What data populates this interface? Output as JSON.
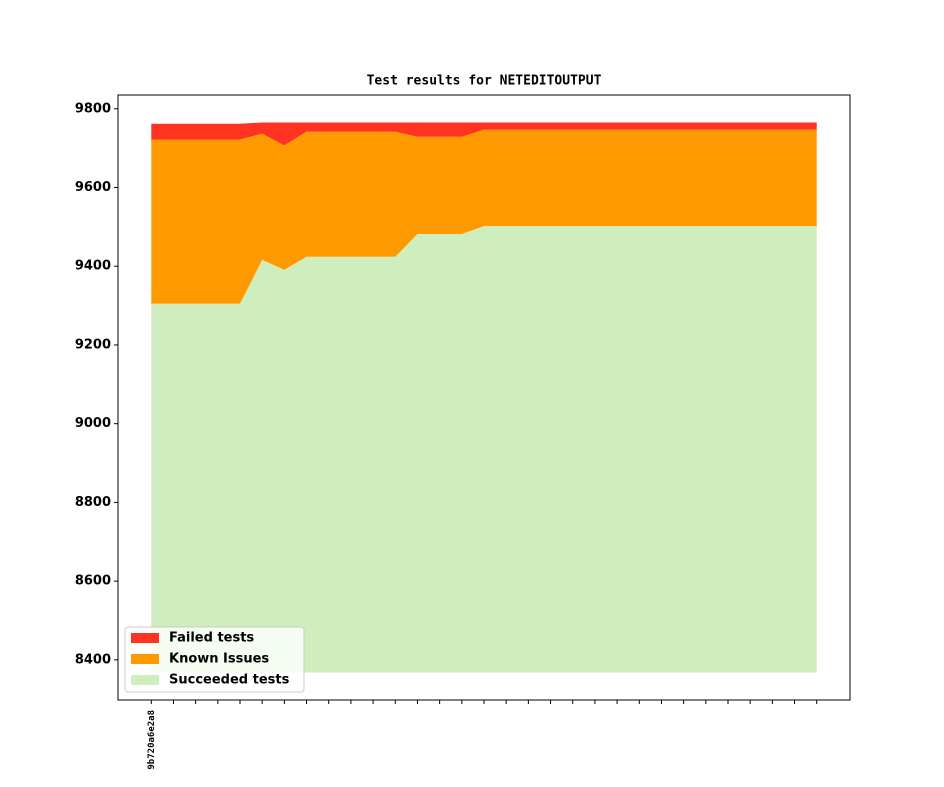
{
  "chart_data": {
    "type": "stacked_area",
    "title": "Test results for NETEDITOUTPUT",
    "categories": [
      "9b720a6e2a8",
      null,
      null,
      null,
      null,
      null,
      null,
      null,
      null,
      null,
      null,
      null,
      null,
      null,
      null,
      null,
      null,
      null,
      null,
      null,
      null,
      null,
      null,
      null,
      null,
      null,
      null,
      null,
      null,
      null,
      null
    ],
    "area_base": 8368,
    "series": [
      {
        "name": "Failed tests",
        "color": "#ff3322",
        "values": [
          40,
          40,
          40,
          40,
          40,
          28,
          58,
          23,
          23,
          23,
          23,
          23,
          36,
          36,
          36,
          18,
          18,
          18,
          18,
          18,
          18,
          18,
          18,
          18,
          18,
          18,
          18,
          18,
          18,
          18,
          18
        ]
      },
      {
        "name": "Known Issues",
        "color": "#ff9900",
        "values": [
          417,
          417,
          417,
          417,
          417,
          321,
          316,
          318,
          318,
          318,
          318,
          318,
          247,
          247,
          247,
          245,
          245,
          245,
          245,
          245,
          245,
          245,
          245,
          245,
          245,
          245,
          245,
          245,
          245,
          245,
          245
        ]
      },
      {
        "name": "Succeeded tests",
        "color": "#ceeebe",
        "values": [
          9305,
          9305,
          9305,
          9305,
          9305,
          9416,
          9391,
          9424,
          9424,
          9424,
          9424,
          9424,
          9482,
          9482,
          9482,
          9502,
          9502,
          9502,
          9502,
          9502,
          9502,
          9502,
          9502,
          9502,
          9502,
          9502,
          9502,
          9502,
          9502,
          9502,
          9502
        ]
      }
    ],
    "ylim": [
      8298,
      9835
    ],
    "yticks": [
      8400,
      8600,
      8800,
      9000,
      9200,
      9400,
      9600,
      9800
    ],
    "legend": "lower left",
    "grid": false
  }
}
